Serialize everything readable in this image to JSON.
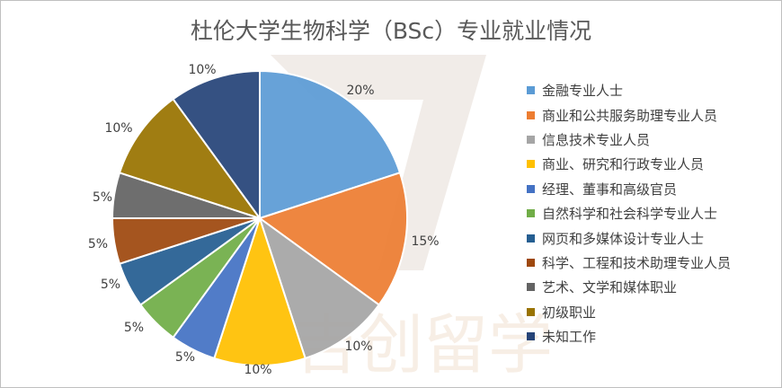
{
  "chart_data": {
    "type": "pie",
    "title": "杜伦大学生物科学（BSc）专业就业情况",
    "categories": [
      "金融专业人士",
      "商业和公共服务助理专业人员",
      "信息技术专业人员",
      "商业、研究和行政专业人员",
      "经理、董事和高级官员",
      "自然科学和社会科学专业人士",
      "网页和多媒体设计专业人士",
      "科学、工程和技术助理专业人员",
      "艺术、文学和媒体职业",
      "初级职业",
      "未知工作"
    ],
    "values": [
      20,
      15,
      10,
      10,
      5,
      5,
      5,
      5,
      5,
      10,
      10
    ],
    "data_labels": [
      "20%",
      "15%",
      "10%",
      "10%",
      "5%",
      "5%",
      "5%",
      "5%",
      "5%",
      "10%",
      "10%"
    ],
    "colors": [
      "#5b9bd5",
      "#ed7d31",
      "#a5a5a5",
      "#ffc000",
      "#4472c4",
      "#70ad47",
      "#255e91",
      "#9e480e",
      "#636363",
      "#997300",
      "#264478"
    ],
    "legend_position": "right",
    "watermark": "吉创留学"
  }
}
